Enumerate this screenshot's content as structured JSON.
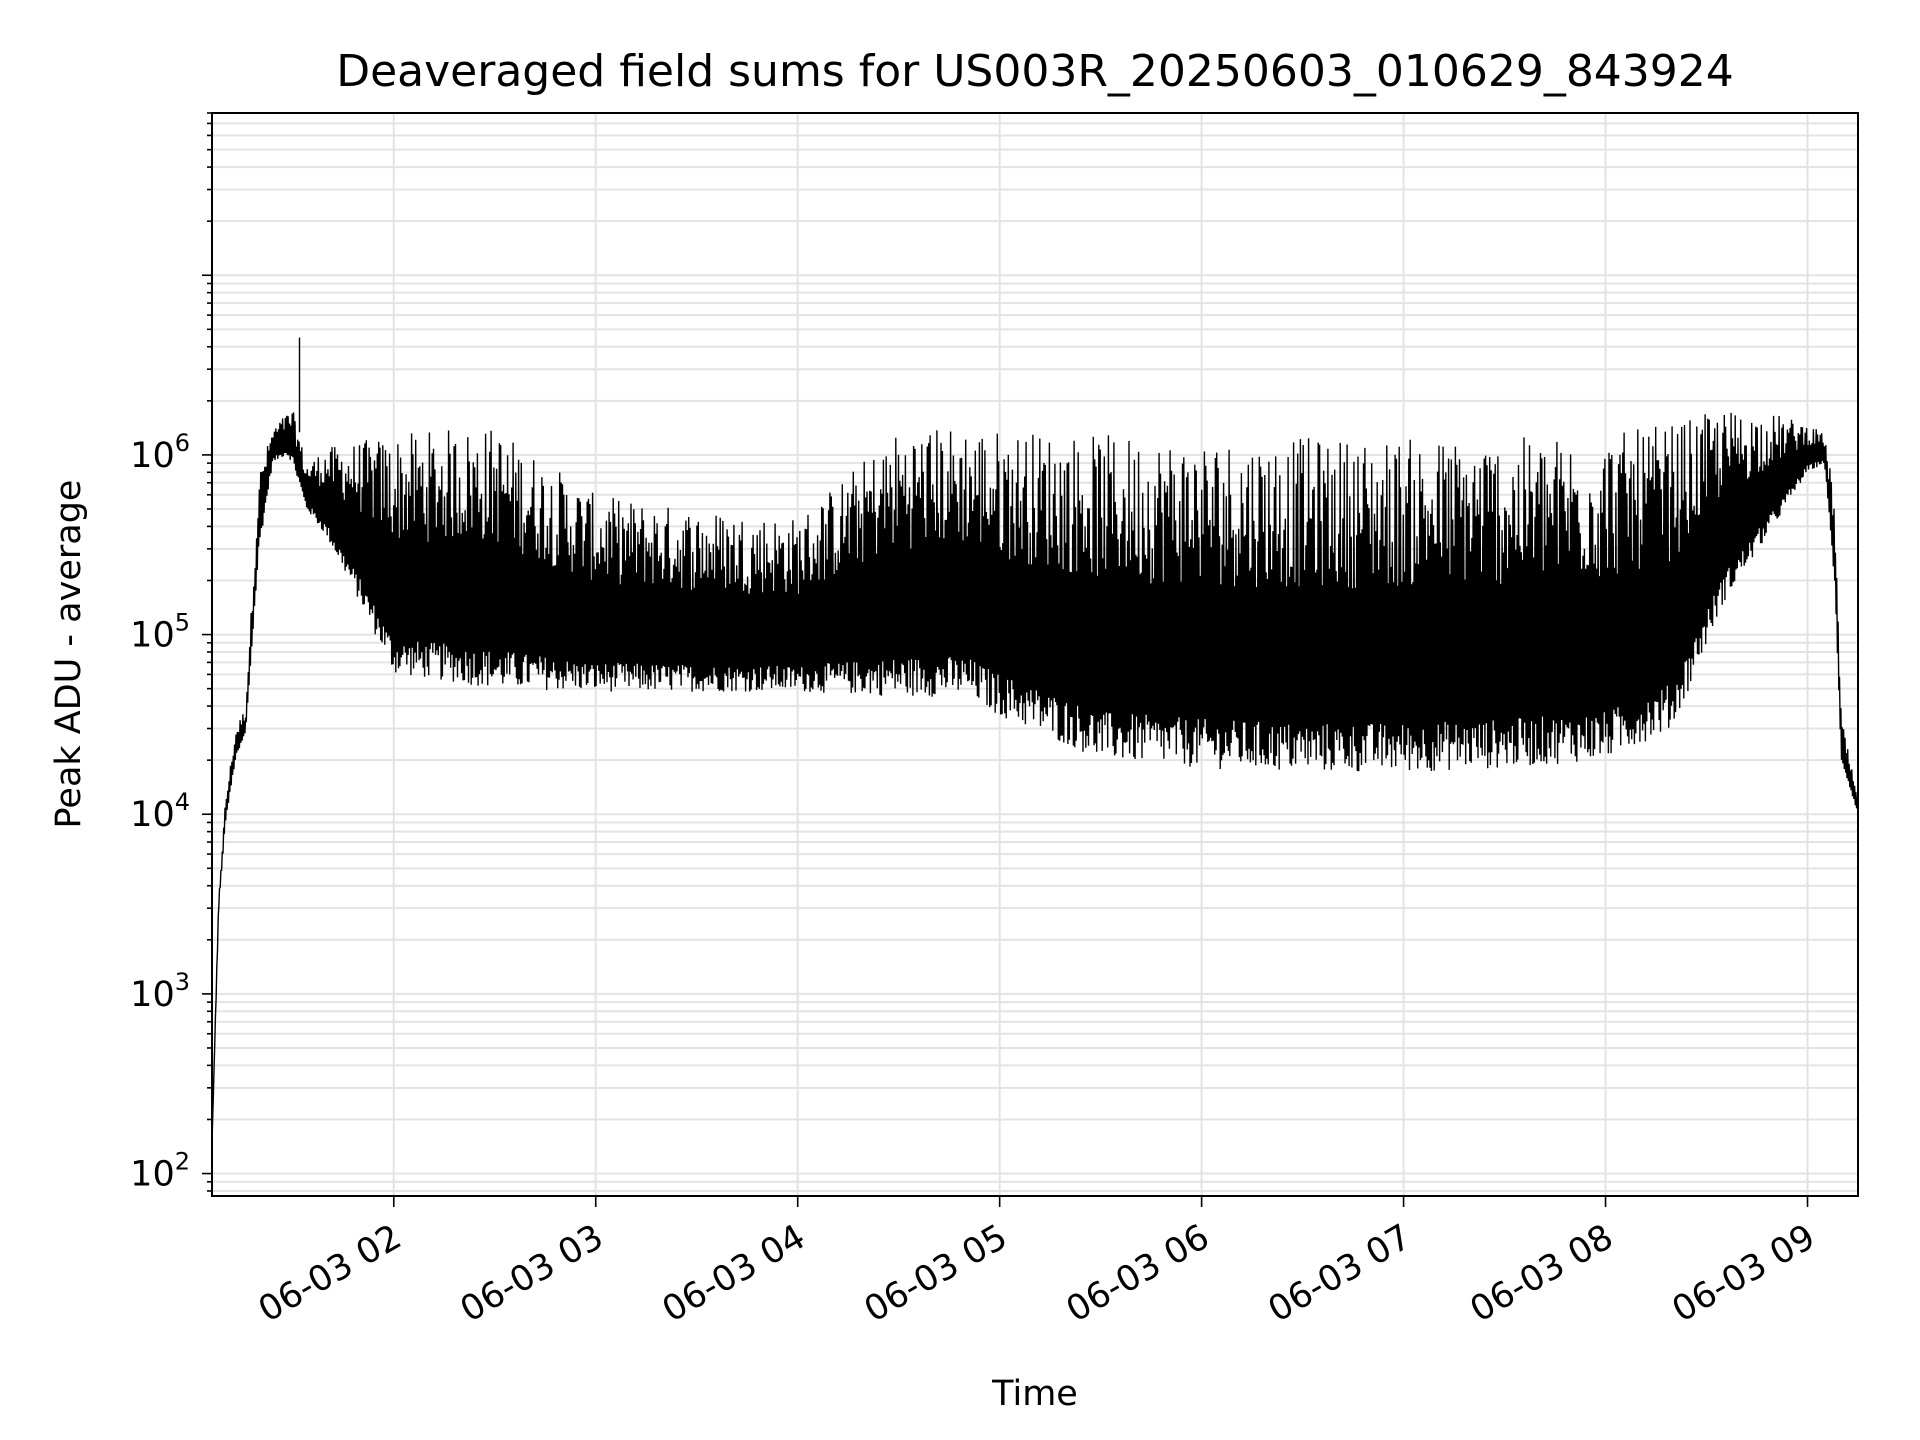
{
  "chart_data": {
    "type": "line",
    "title": "Deaveraged field sums for US003R_20250603_010629_843924",
    "xlabel": "Time",
    "ylabel": "Peak ADU - average",
    "yscale": "log",
    "ylim": [
      75,
      80000000
    ],
    "xlim": [
      "06-03 01:06",
      "06-03 09:15"
    ],
    "grid": true,
    "x_ticks": [
      {
        "label": "06-03 02",
        "value": "06-03 02:00"
      },
      {
        "label": "06-03 03",
        "value": "06-03 03:00"
      },
      {
        "label": "06-03 04",
        "value": "06-03 04:00"
      },
      {
        "label": "06-03 05",
        "value": "06-03 05:00"
      },
      {
        "label": "06-03 06",
        "value": "06-03 06:00"
      },
      {
        "label": "06-03 07",
        "value": "06-03 07:00"
      },
      {
        "label": "06-03 08",
        "value": "06-03 08:00"
      },
      {
        "label": "06-03 09",
        "value": "06-03 09:00"
      }
    ],
    "y_ticks": [
      {
        "base": "10",
        "exp": "2",
        "value": 100
      },
      {
        "base": "10",
        "exp": "3",
        "value": 1000
      },
      {
        "base": "10",
        "exp": "4",
        "value": 10000
      },
      {
        "base": "10",
        "exp": "5",
        "value": 100000
      },
      {
        "base": "10",
        "exp": "6",
        "value": 1000000
      }
    ],
    "series": [
      {
        "line_color": "#000000",
        "envelope": [
          {
            "t": "06-03 01:06",
            "lower": 150,
            "upper": 150
          },
          {
            "t": "06-03 01:08",
            "lower": 3000,
            "upper": 3500
          },
          {
            "t": "06-03 01:10",
            "lower": 9000,
            "upper": 12000
          },
          {
            "t": "06-03 01:13",
            "lower": 20000,
            "upper": 30000
          },
          {
            "t": "06-03 01:16",
            "lower": 28000,
            "upper": 40000
          },
          {
            "t": "06-03 01:20",
            "lower": 300000,
            "upper": 800000
          },
          {
            "t": "06-03 01:24",
            "lower": 900000,
            "upper": 1400000
          },
          {
            "t": "06-03 01:28",
            "lower": 1000000,
            "upper": 1700000
          },
          {
            "t": "06-03 01:30",
            "lower": 900000,
            "upper": 1800000
          },
          {
            "t": "06-03 01:34",
            "lower": 500000,
            "upper": 900000
          },
          {
            "t": "06-03 01:40",
            "lower": 350000,
            "upper": 1100000
          },
          {
            "t": "06-03 01:50",
            "lower": 150000,
            "upper": 1200000
          },
          {
            "t": "06-03 02:00",
            "lower": 60000,
            "upper": 1300000
          },
          {
            "t": "06-03 02:15",
            "lower": 55000,
            "upper": 1400000
          },
          {
            "t": "06-03 02:30",
            "lower": 50000,
            "upper": 1450000
          },
          {
            "t": "06-03 03:00",
            "lower": 48000,
            "upper": 600000
          },
          {
            "t": "06-03 03:30",
            "lower": 48000,
            "upper": 500000
          },
          {
            "t": "06-03 04:00",
            "lower": 48000,
            "upper": 450000
          },
          {
            "t": "06-03 04:30",
            "lower": 45000,
            "upper": 1400000
          },
          {
            "t": "06-03 04:50",
            "lower": 45000,
            "upper": 1500000
          },
          {
            "t": "06-03 05:00",
            "lower": 35000,
            "upper": 1400000
          },
          {
            "t": "06-03 05:30",
            "lower": 20000,
            "upper": 1300000
          },
          {
            "t": "06-03 06:00",
            "lower": 18000,
            "upper": 1250000
          },
          {
            "t": "06-03 06:30",
            "lower": 17000,
            "upper": 1250000
          },
          {
            "t": "06-03 07:00",
            "lower": 17000,
            "upper": 1250000
          },
          {
            "t": "06-03 07:30",
            "lower": 18000,
            "upper": 1250000
          },
          {
            "t": "06-03 08:00",
            "lower": 20000,
            "upper": 1300000
          },
          {
            "t": "06-03 08:20",
            "lower": 30000,
            "upper": 1500000
          },
          {
            "t": "06-03 08:35",
            "lower": 150000,
            "upper": 1800000
          },
          {
            "t": "06-03 08:50",
            "lower": 400000,
            "upper": 1700000
          },
          {
            "t": "06-03 09:00",
            "lower": 800000,
            "upper": 1500000
          },
          {
            "t": "06-03 09:05",
            "lower": 900000,
            "upper": 1300000
          },
          {
            "t": "06-03 09:08",
            "lower": 200000,
            "upper": 600000
          },
          {
            "t": "06-03 09:10",
            "lower": 20000,
            "upper": 35000
          },
          {
            "t": "06-03 09:15",
            "lower": 10000,
            "upper": 12000
          }
        ],
        "spikes": [
          {
            "t": "06-03 01:32",
            "value": 4500000
          }
        ]
      }
    ]
  }
}
